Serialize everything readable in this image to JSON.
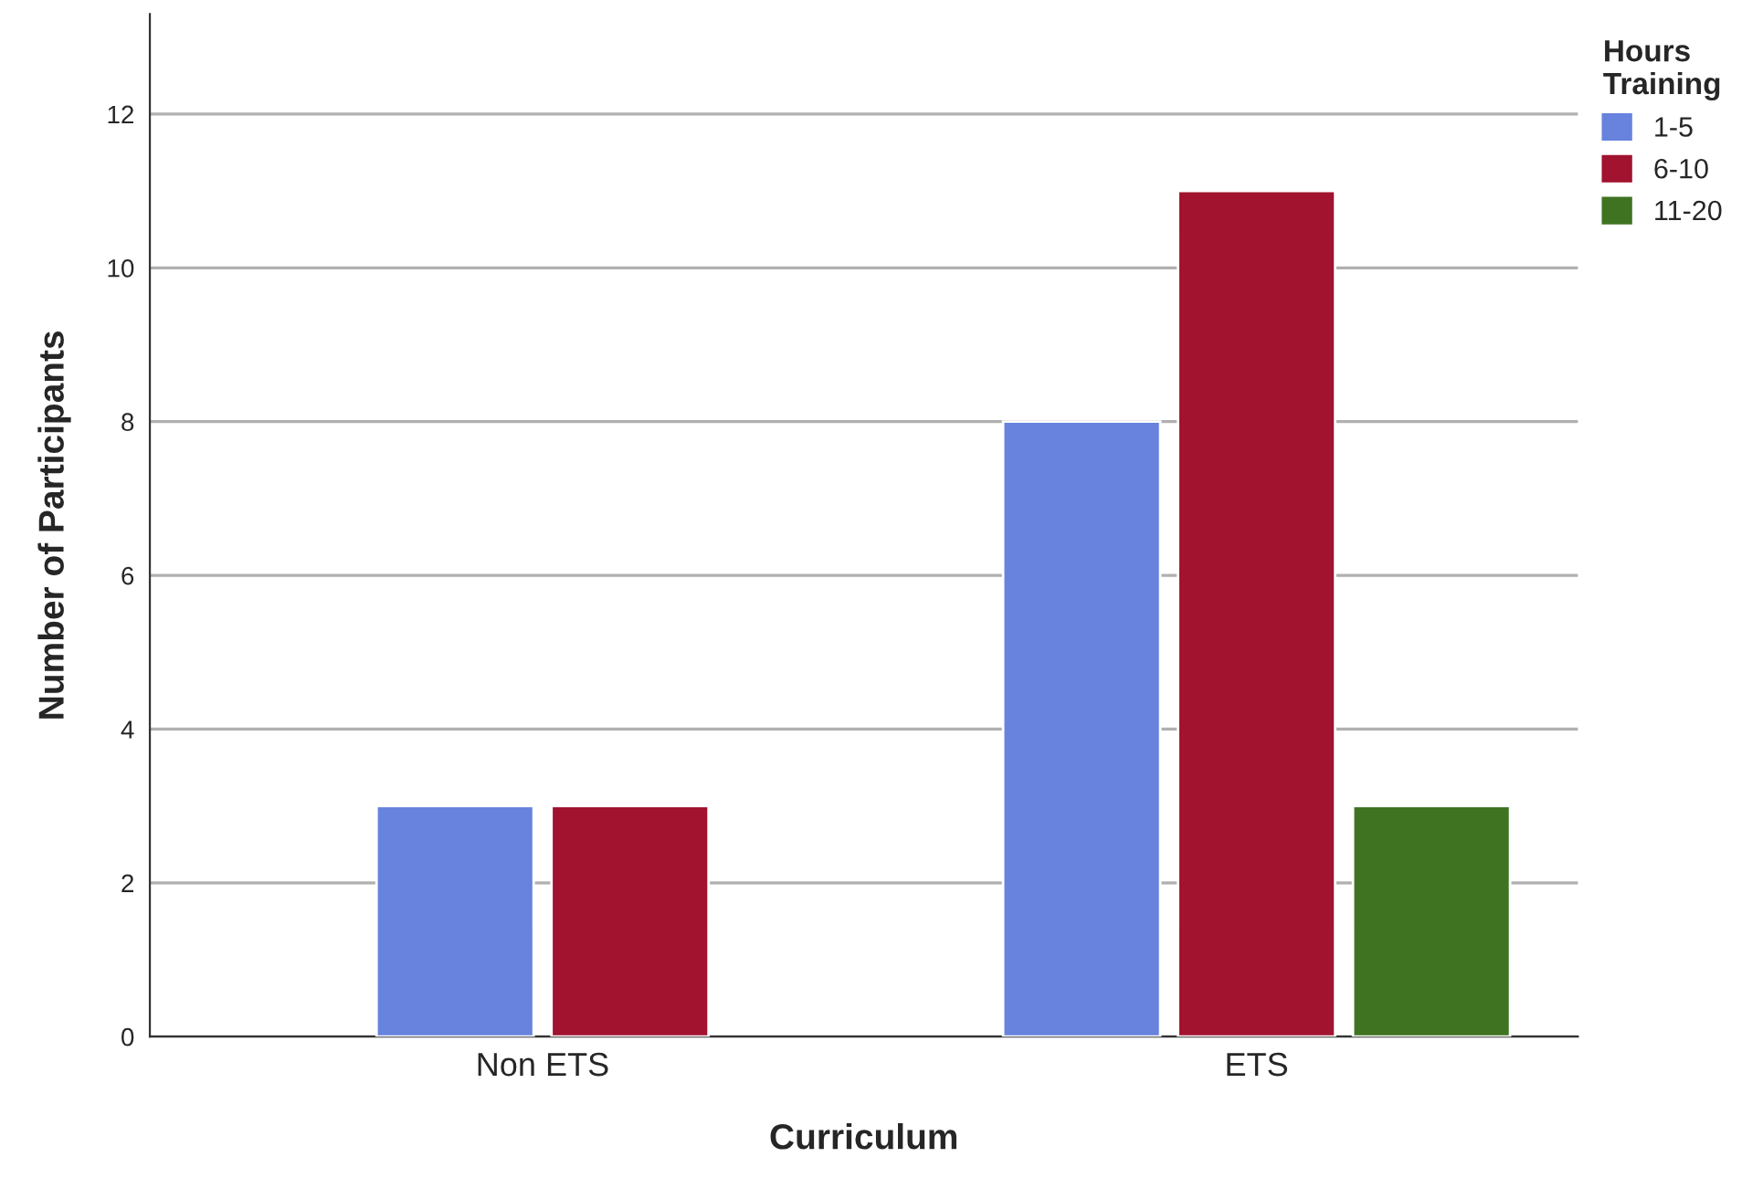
{
  "chart_data": {
    "type": "bar",
    "xlabel": "Curriculum",
    "ylabel": "Number of Participants",
    "legend_title": "Hours\nTraining",
    "categories": [
      "Non ETS",
      "ETS"
    ],
    "series": [
      {
        "name": "1-5",
        "color": "#6783dd",
        "values": [
          3,
          8
        ]
      },
      {
        "name": "6-10",
        "color": "#a1132e",
        "values": [
          3,
          11
        ]
      },
      {
        "name": "11-20",
        "color": "#3f7322",
        "values": [
          null,
          3
        ]
      }
    ],
    "ylim": [
      0,
      13.3
    ],
    "yticks": [
      0,
      2,
      4,
      6,
      8,
      10,
      12
    ],
    "grid": "y",
    "legend": "top right"
  }
}
